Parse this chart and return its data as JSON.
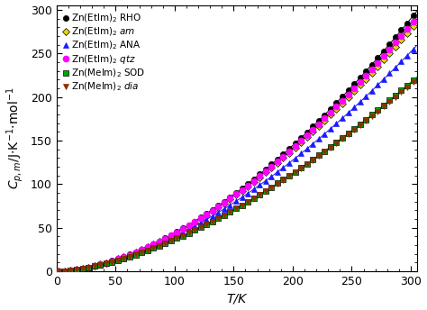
{
  "title": "",
  "xlabel": "T/K",
  "xlim": [
    0,
    305
  ],
  "ylim": [
    0,
    305
  ],
  "xticks": [
    0,
    50,
    100,
    150,
    200,
    250,
    300
  ],
  "yticks": [
    0,
    50,
    100,
    150,
    200,
    250,
    300
  ],
  "series": [
    {
      "label": "Zn(EtIm)$_2$ RHO",
      "color": "black",
      "marker": "o",
      "markersize": 4.5,
      "markeredgecolor": "black",
      "end_value": 290,
      "exponent": 1.72
    },
    {
      "label": "Zn(EtIm)$_2$ $am$",
      "color": "#e8d800",
      "marker": "D",
      "markersize": 4.5,
      "markeredgecolor": "black",
      "end_value": 278,
      "exponent": 1.7
    },
    {
      "label": "Zn(EtIm)$_2$ ANA",
      "color": "#1a1aff",
      "marker": "^",
      "markersize": 5,
      "markeredgecolor": "#1a1aff",
      "end_value": 252,
      "exponent": 1.68
    },
    {
      "label": "Zn(EtIm)$_2$ $qtz$",
      "color": "#ff00ff",
      "marker": "o",
      "markersize": 5,
      "markeredgecolor": "#ff00ff",
      "end_value": 283,
      "exponent": 1.71
    },
    {
      "label": "Zn(MeIm)$_2$ SOD",
      "color": "#00aa00",
      "marker": "s",
      "markersize": 4,
      "markeredgecolor": "black",
      "end_value": 217,
      "exponent": 1.62
    },
    {
      "label": "Zn(MeIm)$_2$ $dia$",
      "color": "#8B3000",
      "marker": "v",
      "markersize": 4,
      "markeredgecolor": "#8B3000",
      "end_value": 215,
      "exponent": 1.61
    }
  ],
  "figsize": [
    4.74,
    3.44
  ],
  "dpi": 100,
  "background_color": "white",
  "legend_fontsize": 7.5,
  "axis_fontsize": 10,
  "tick_fontsize": 9
}
